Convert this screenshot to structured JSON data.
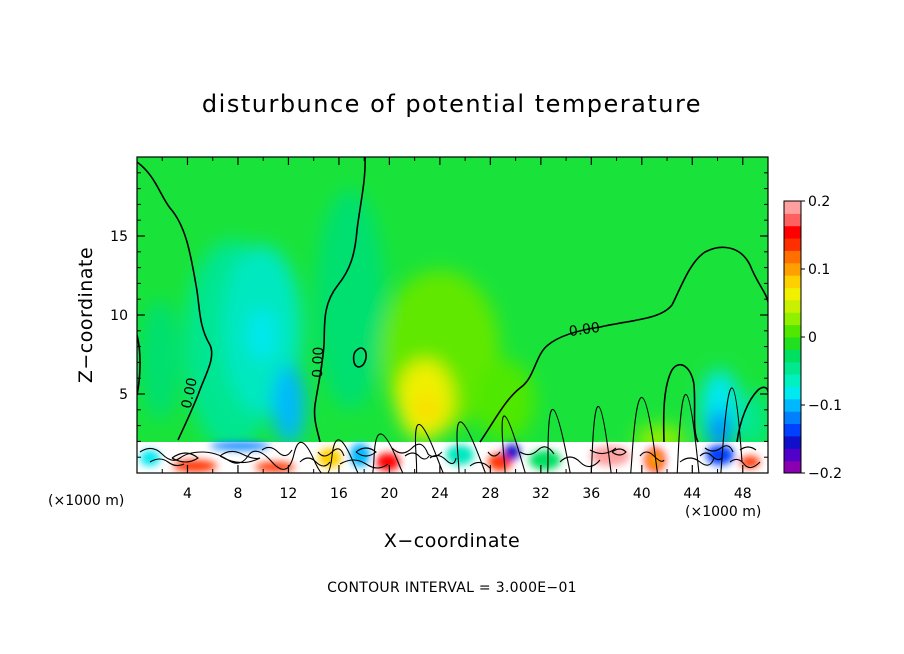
{
  "chart_data": {
    "type": "heatmap",
    "title": "disturbunce of potential temperature",
    "xlabel": "X−coordinate",
    "ylabel": "Z−coordinate",
    "x_unit": "(×1000 m)",
    "x_unit_right": "(×1000 m)",
    "xlim": [
      0,
      50
    ],
    "ylim": [
      0,
      20
    ],
    "x_ticks": [
      4,
      8,
      12,
      16,
      20,
      24,
      28,
      32,
      36,
      40,
      44,
      48
    ],
    "y_ticks": [
      5,
      10,
      15
    ],
    "color_range": [
      -0.2,
      0.2
    ],
    "colorbar_ticks": [
      {
        "value": 0.2,
        "label": "0.2"
      },
      {
        "value": 0.1,
        "label": "0.1"
      },
      {
        "value": 0,
        "label": "0"
      },
      {
        "value": -0.1,
        "label": "−0.1"
      },
      {
        "value": -0.2,
        "label": "−0.2"
      }
    ],
    "colorbar_colors": [
      "#8a00b0",
      "#5000c8",
      "#1010c8",
      "#0040ff",
      "#0080ff",
      "#00b8ff",
      "#00e8f0",
      "#00f0c0",
      "#00e890",
      "#00e060",
      "#20e020",
      "#50e800",
      "#90f000",
      "#c8f000",
      "#f0f000",
      "#ffd000",
      "#ffa000",
      "#ff7000",
      "#ff3000",
      "#ff0000",
      "#ff6060",
      "#ffa0a0"
    ],
    "contour_labels": [
      {
        "x": 4.5,
        "z": 5.0,
        "text": "0.00",
        "angle": -78
      },
      {
        "x": 14.7,
        "z": 7.0,
        "text": "0.00",
        "angle": -88
      },
      {
        "x": 35.5,
        "z": 8.8,
        "text": "0.00",
        "angle": -8
      }
    ],
    "features": [
      {
        "x": 9.5,
        "z": 9.0,
        "value": -0.08
      },
      {
        "x": 12.5,
        "z": 3.0,
        "value": -0.13
      },
      {
        "x": 22.5,
        "z": 4.5,
        "value": 0.1
      },
      {
        "x": 46.0,
        "z": 3.0,
        "value": -0.12
      },
      {
        "x": 4.0,
        "z": 2.0,
        "value": 0.15
      }
    ],
    "footer": "CONTOUR INTERVAL = 3.000E−01"
  }
}
